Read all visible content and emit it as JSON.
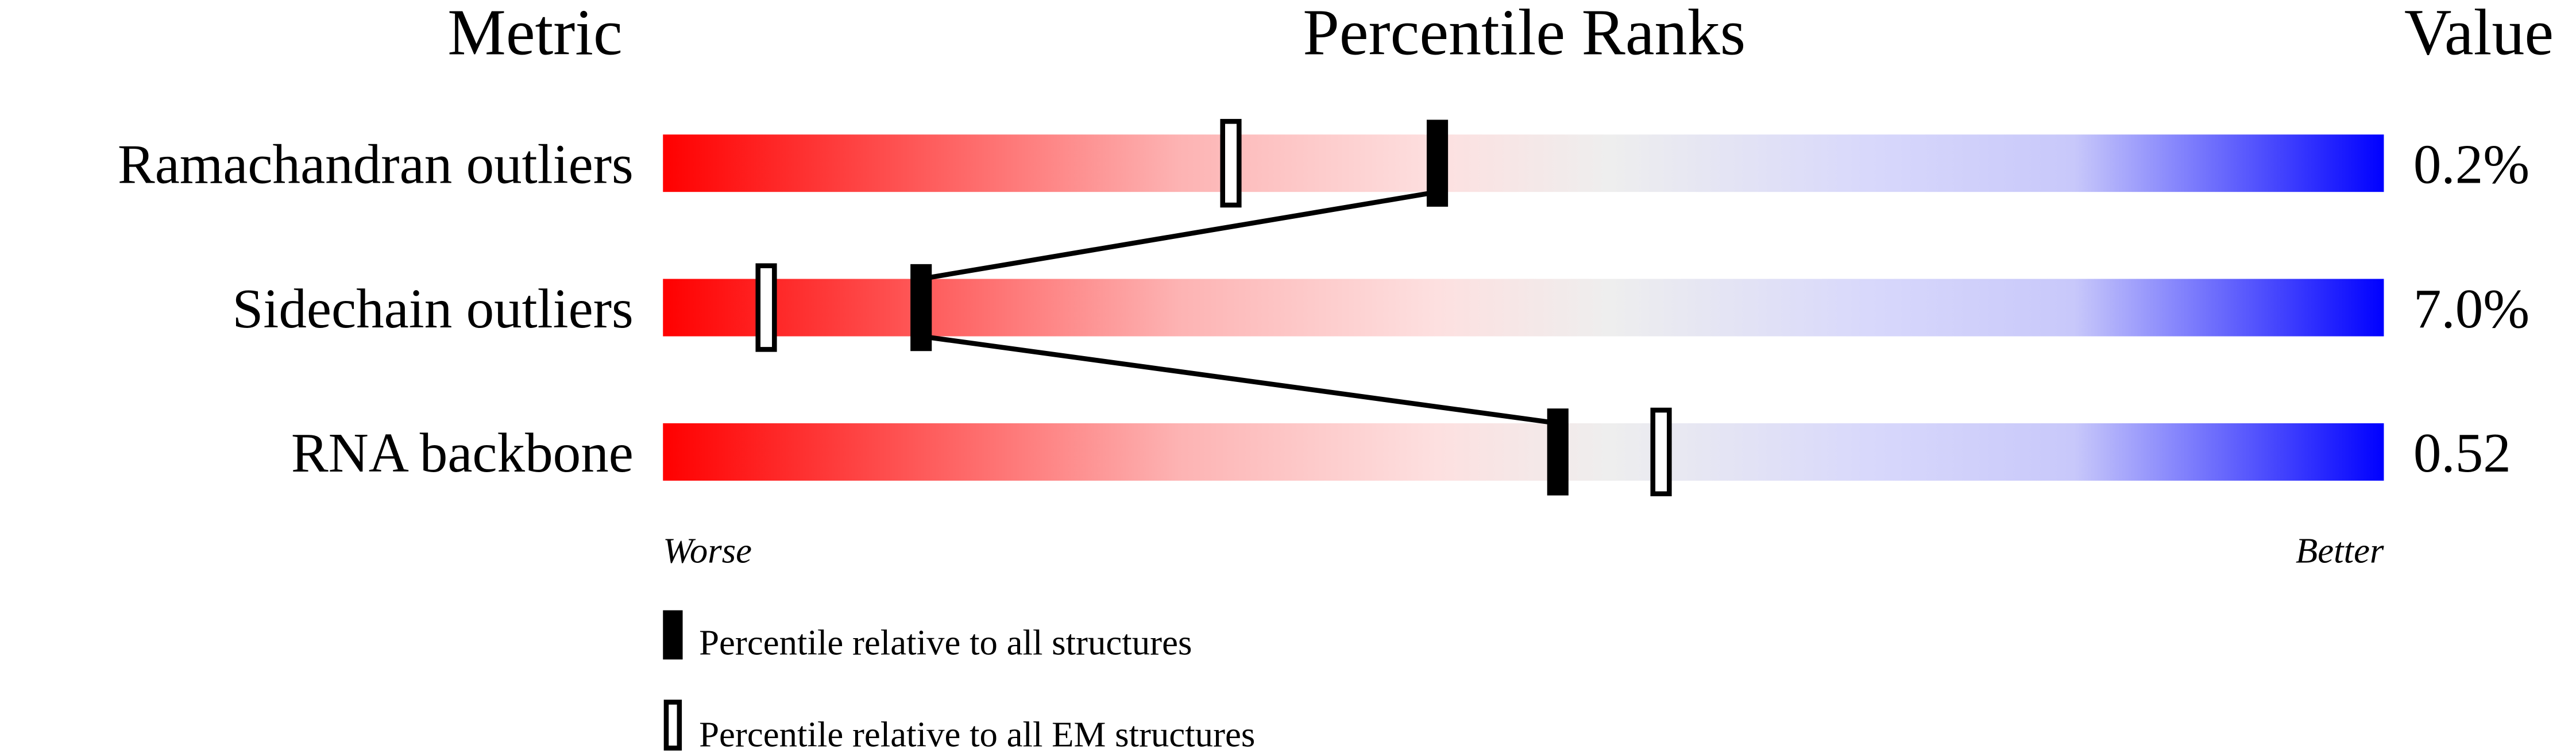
{
  "chart_data": {
    "type": "percentile-bar",
    "headers": {
      "metric": "Metric",
      "ranks": "Percentile Ranks",
      "value": "Value"
    },
    "xlim": [
      0,
      100
    ],
    "rows": [
      {
        "metric": "Ramachandran outliers",
        "value": "0.2%",
        "percentile_all": 45,
        "percentile_em": 33
      },
      {
        "metric": "Sidechain outliers",
        "value": "7.0%",
        "percentile_all": 15,
        "percentile_em": 6
      },
      {
        "metric": "RNA backbone",
        "value": "0.52",
        "percentile_all": 52,
        "percentile_em": 58
      }
    ],
    "axis": {
      "worse": "Worse",
      "better": "Better"
    },
    "legend": {
      "all": "Percentile relative to all structures",
      "em": "Percentile relative to all EM structures",
      "placement": "bottom"
    },
    "colors": {
      "worse": "#ff0000",
      "middle": "#eeeeee",
      "better": "#0000ff",
      "marker": "#000000"
    }
  }
}
